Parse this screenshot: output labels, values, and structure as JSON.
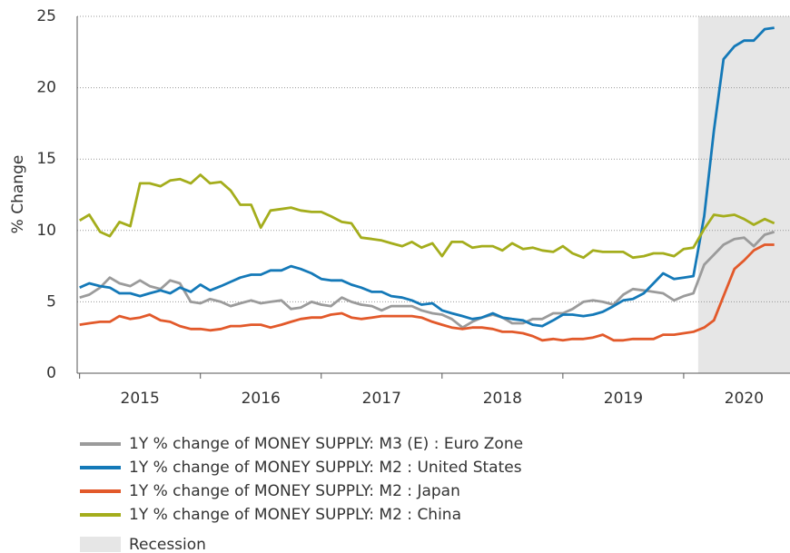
{
  "chart_data": {
    "type": "line",
    "y_label": "% Change",
    "x": [
      2015.0,
      2015.08,
      2015.17,
      2015.25,
      2015.33,
      2015.42,
      2015.5,
      2015.58,
      2015.67,
      2015.75,
      2015.83,
      2015.92,
      2016.0,
      2016.08,
      2016.17,
      2016.25,
      2016.33,
      2016.42,
      2016.5,
      2016.58,
      2016.67,
      2016.75,
      2016.83,
      2016.92,
      2017.0,
      2017.08,
      2017.17,
      2017.25,
      2017.33,
      2017.42,
      2017.5,
      2017.58,
      2017.67,
      2017.75,
      2017.83,
      2017.92,
      2018.0,
      2018.08,
      2018.17,
      2018.25,
      2018.33,
      2018.42,
      2018.5,
      2018.58,
      2018.67,
      2018.75,
      2018.83,
      2018.92,
      2019.0,
      2019.08,
      2019.17,
      2019.25,
      2019.33,
      2019.42,
      2019.5,
      2019.58,
      2019.67,
      2019.75,
      2019.83,
      2019.92,
      2020.0,
      2020.08,
      2020.17,
      2020.25,
      2020.33,
      2020.42,
      2020.5,
      2020.58,
      2020.67,
      2020.75
    ],
    "series": [
      {
        "name": "1Y % change of MONEY SUPPLY: M3 (E) : Euro Zone",
        "color": "#9b9b9b",
        "values": [
          5.3,
          5.5,
          6.0,
          6.7,
          6.3,
          6.1,
          6.5,
          6.1,
          5.9,
          6.5,
          6.3,
          5.0,
          4.9,
          5.2,
          5.0,
          4.7,
          4.9,
          5.1,
          4.9,
          5.0,
          5.1,
          4.5,
          4.6,
          5.0,
          4.8,
          4.7,
          5.3,
          5.0,
          4.8,
          4.7,
          4.4,
          4.7,
          4.7,
          4.7,
          4.4,
          4.2,
          4.1,
          3.8,
          3.2,
          3.6,
          3.9,
          4.1,
          3.9,
          3.5,
          3.5,
          3.8,
          3.8,
          4.2,
          4.2,
          4.5,
          5.0,
          5.1,
          5.0,
          4.8,
          5.5,
          5.9,
          5.8,
          5.7,
          5.6,
          5.1,
          5.4,
          5.6,
          7.6,
          8.3,
          9.0,
          9.4,
          9.5,
          8.9,
          9.7,
          9.9
        ]
      },
      {
        "name": "1Y % change of MONEY SUPPLY: M2 : United States",
        "color": "#1479b8",
        "values": [
          6.0,
          6.3,
          6.1,
          6.0,
          5.6,
          5.6,
          5.4,
          5.6,
          5.8,
          5.6,
          6.0,
          5.7,
          6.2,
          5.8,
          6.1,
          6.4,
          6.7,
          6.9,
          6.9,
          7.2,
          7.2,
          7.5,
          7.3,
          7.0,
          6.6,
          6.5,
          6.5,
          6.2,
          6.0,
          5.7,
          5.7,
          5.4,
          5.3,
          5.1,
          4.8,
          4.9,
          4.4,
          4.2,
          4.0,
          3.8,
          3.9,
          4.2,
          3.9,
          3.8,
          3.7,
          3.4,
          3.3,
          3.7,
          4.1,
          4.1,
          4.0,
          4.1,
          4.3,
          4.7,
          5.1,
          5.2,
          5.6,
          6.3,
          7.0,
          6.6,
          6.7,
          6.8,
          11.0,
          17.0,
          22.0,
          22.9,
          23.3,
          23.3,
          24.1,
          24.2
        ]
      },
      {
        "name": "1Y % change of MONEY SUPPLY: M2 : Japan",
        "color": "#e2592a",
        "values": [
          3.4,
          3.5,
          3.6,
          3.6,
          4.0,
          3.8,
          3.9,
          4.1,
          3.7,
          3.6,
          3.3,
          3.1,
          3.1,
          3.0,
          3.1,
          3.3,
          3.3,
          3.4,
          3.4,
          3.2,
          3.4,
          3.6,
          3.8,
          3.9,
          3.9,
          4.1,
          4.2,
          3.9,
          3.8,
          3.9,
          4.0,
          4.0,
          4.0,
          4.0,
          3.9,
          3.6,
          3.4,
          3.2,
          3.1,
          3.2,
          3.2,
          3.1,
          2.9,
          2.9,
          2.8,
          2.6,
          2.3,
          2.4,
          2.3,
          2.4,
          2.4,
          2.5,
          2.7,
          2.3,
          2.3,
          2.4,
          2.4,
          2.4,
          2.7,
          2.7,
          2.8,
          2.9,
          3.2,
          3.7,
          5.4,
          7.3,
          7.9,
          8.6,
          9.0,
          9.0
        ]
      },
      {
        "name": "1Y % change of MONEY SUPPLY: M2 : China",
        "color": "#a4ad1c",
        "values": [
          10.7,
          11.1,
          9.9,
          9.6,
          10.6,
          10.3,
          13.3,
          13.3,
          13.1,
          13.5,
          13.6,
          13.3,
          13.9,
          13.3,
          13.4,
          12.8,
          11.8,
          11.8,
          10.2,
          11.4,
          11.5,
          11.6,
          11.4,
          11.3,
          11.3,
          11.0,
          10.6,
          10.5,
          9.5,
          9.4,
          9.3,
          9.1,
          8.9,
          9.2,
          8.8,
          9.1,
          8.2,
          9.2,
          9.2,
          8.8,
          8.9,
          8.9,
          8.6,
          9.1,
          8.7,
          8.8,
          8.6,
          8.5,
          8.9,
          8.4,
          8.1,
          8.6,
          8.5,
          8.5,
          8.5,
          8.1,
          8.2,
          8.4,
          8.4,
          8.2,
          8.7,
          8.8,
          10.1,
          11.1,
          11.0,
          11.1,
          10.8,
          10.4,
          10.8,
          10.5
        ]
      }
    ],
    "recession": {
      "label": "Recession",
      "color": "#e6e6e6",
      "start": 2020.12,
      "end": 2020.88
    },
    "xlim": [
      2014.98,
      2020.88
    ],
    "xticks": [
      {
        "value": 2015.5,
        "label": "2015"
      },
      {
        "value": 2016.5,
        "label": "2016"
      },
      {
        "value": 2017.5,
        "label": "2017"
      },
      {
        "value": 2018.5,
        "label": "2018"
      },
      {
        "value": 2019.5,
        "label": "2019"
      },
      {
        "value": 2020.5,
        "label": "2020"
      }
    ],
    "ylim": [
      0,
      25
    ],
    "yticks": [
      0,
      5,
      10,
      15,
      20,
      25
    ],
    "grid": true
  }
}
